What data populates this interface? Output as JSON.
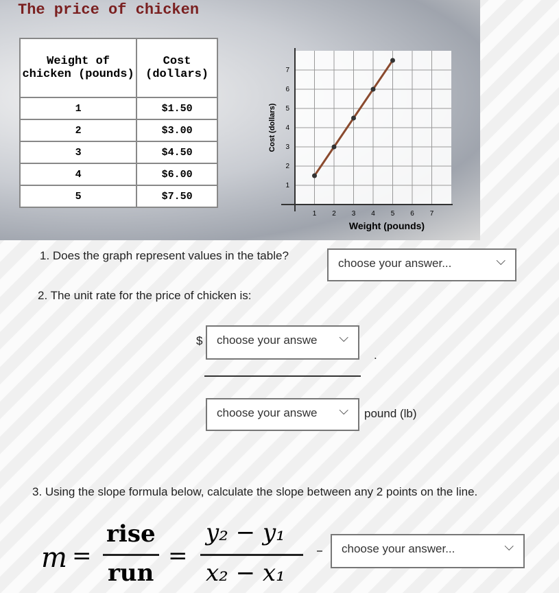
{
  "header": {
    "title": "The price of chicken"
  },
  "table": {
    "columns": [
      "Weight of chicken (pounds)",
      "Cost (dollars)"
    ],
    "rows": [
      [
        "1",
        "$1.50"
      ],
      [
        "2",
        "$3.00"
      ],
      [
        "3",
        "$4.50"
      ],
      [
        "4",
        "$6.00"
      ],
      [
        "5",
        "$7.50"
      ]
    ]
  },
  "chart_data": {
    "type": "line",
    "x_label": "Weight (pounds)",
    "y_label": "Cost (dollars)",
    "x": [
      1,
      2,
      3,
      4,
      5
    ],
    "series": [
      {
        "name": "Cost",
        "color": "#8a4a2e",
        "values": [
          1.5,
          3,
          4.5,
          6,
          7.5
        ]
      }
    ],
    "xlim": [
      0,
      8
    ],
    "ylim": [
      0,
      8
    ],
    "xticks": [
      1,
      2,
      3,
      4,
      5,
      6,
      7
    ],
    "yticks": [
      1,
      2,
      3,
      4,
      5,
      6,
      7
    ],
    "grid": true
  },
  "questions": [
    {
      "text": "1. Does the graph represent values in the table?",
      "dropdown": "choose your answer..."
    },
    {
      "text": "2. The unit rate for the price of chicken is:",
      "currency": "$",
      "numerator_dropdown": "choose your answe",
      "period": ".",
      "denominator_dropdown": "choose your answe",
      "unit": "pound (lb)"
    },
    {
      "text": "3. Using the slope formula below, calculate the slope between any 2 points on the line.",
      "dropdown": "choose your answer..."
    }
  ],
  "formula": {
    "lhs": "m",
    "equals": "=",
    "rise": "rise",
    "run": "run",
    "numerator": "y₂ − y₁",
    "denominator": "x₂ − x₁"
  }
}
